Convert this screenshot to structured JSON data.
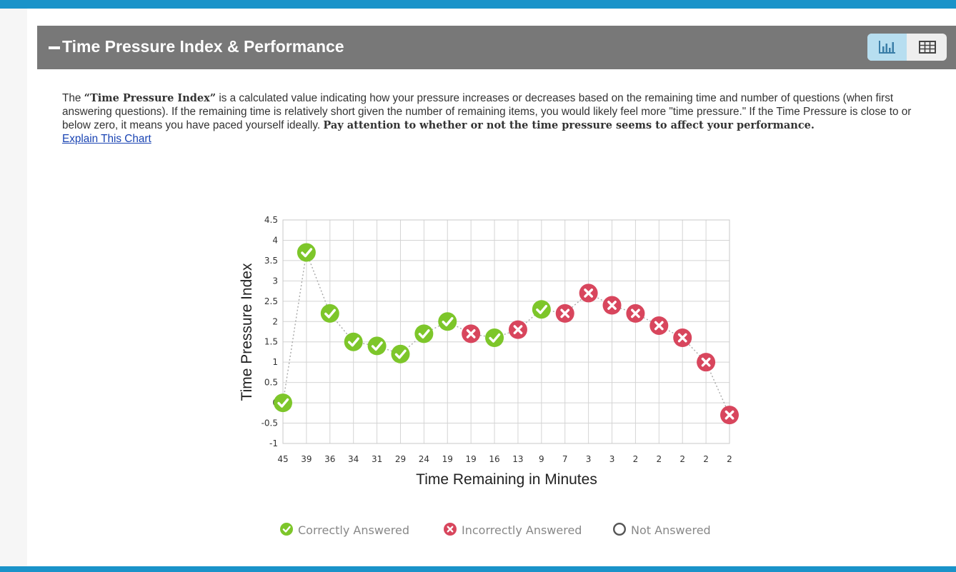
{
  "panel": {
    "title": "Time Pressure Index & Performance",
    "view_buttons": {
      "chart_icon": "bar-chart-icon",
      "table_icon": "table-grid-icon"
    }
  },
  "description": {
    "intro": "The ",
    "term": "“Time Pressure Index”",
    "body": " is a calculated value indicating how your pressure increases or decreases based on the remaining time and number of questions (when first answering questions). If the remaining time is relatively short given the number of remaining items, you would likely feel more \"time pressure.\" If the Time Pressure is close to or below zero, it means you have paced yourself ideally. ",
    "emphasis": "Pay attention to whether or not the time pressure seems to affect your performance.",
    "link": "Explain This Chart"
  },
  "colors": {
    "header_bg": "#787878",
    "accent": "#1a93c9",
    "correct": "#7dc62a",
    "incorrect": "#d8465d",
    "not_answered": "#555555"
  },
  "chart_data": {
    "type": "line",
    "title": "",
    "xlabel": "Time Remaining in Minutes",
    "ylabel": "Time Pressure Index",
    "ylim": [
      -1,
      4.5
    ],
    "yticks": [
      "-1",
      "-0.5",
      "0",
      "0.5",
      "1",
      "1.5",
      "2",
      "2.5",
      "3",
      "3.5",
      "4",
      "4.5"
    ],
    "yticks_values": [
      -1,
      -0.5,
      0,
      0.5,
      1,
      1.5,
      2,
      2.5,
      3,
      3.5,
      4,
      4.5
    ],
    "categories": [
      "45",
      "39",
      "36",
      "34",
      "31",
      "29",
      "24",
      "19",
      "19",
      "16",
      "13",
      "9",
      "7",
      "3",
      "3",
      "2",
      "2",
      "2",
      "2",
      "2"
    ],
    "series": [
      {
        "name": "Time Pressure Index",
        "values": [
          0,
          3.7,
          2.2,
          1.5,
          1.4,
          1.2,
          1.7,
          2.0,
          1.7,
          1.6,
          1.8,
          2.3,
          2.2,
          2.7,
          2.4,
          2.2,
          1.9,
          1.6,
          1.0,
          -0.3
        ],
        "status": [
          "correct",
          "correct",
          "correct",
          "correct",
          "correct",
          "correct",
          "correct",
          "correct",
          "incorrect",
          "correct",
          "incorrect",
          "correct",
          "incorrect",
          "incorrect",
          "incorrect",
          "incorrect",
          "incorrect",
          "incorrect",
          "incorrect",
          "incorrect"
        ]
      }
    ],
    "grid": true,
    "legend": [
      {
        "key": "correct",
        "label": "Correctly Answered"
      },
      {
        "key": "incorrect",
        "label": "Incorrectly Answered"
      },
      {
        "key": "not_answered",
        "label": "Not Answered"
      }
    ],
    "legend_position": "bottom"
  }
}
